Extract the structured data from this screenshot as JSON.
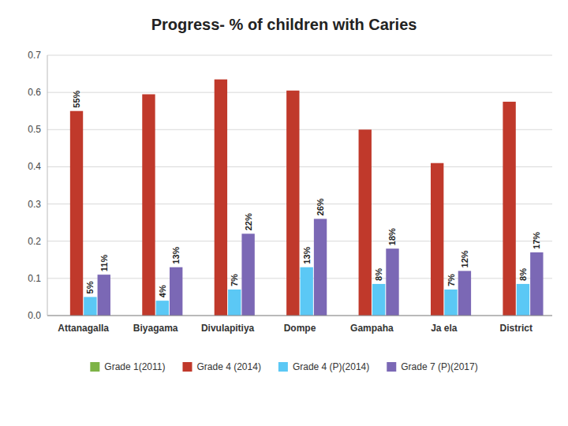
{
  "chart_data": {
    "type": "bar",
    "title": "Progress- % of children with Caries",
    "categories": [
      "Attanagalla",
      "Biyagama",
      "Divulapitiya",
      "Dompe",
      "Gampaha",
      "Ja ela",
      "District"
    ],
    "series": [
      {
        "name": "Grade 1(2011)",
        "color": "#7db346",
        "values": [
          0.0,
          0.0,
          0.0,
          0.0,
          0.0,
          0.0,
          0.0
        ]
      },
      {
        "name": "Grade 4 (2014)",
        "color": "#c0392b",
        "values": [
          0.55,
          0.595,
          0.635,
          0.605,
          0.5,
          0.41,
          0.575
        ],
        "value_labels": [
          "55%",
          null,
          null,
          null,
          null,
          null,
          null
        ]
      },
      {
        "name": "Grade 4 (P)(2014)",
        "color": "#5bc8f5",
        "values": [
          0.05,
          0.04,
          0.07,
          0.13,
          0.085,
          0.07,
          0.085
        ],
        "value_labels": [
          "5%",
          "4%",
          "7%",
          "13%",
          "8%",
          "7%",
          "8%"
        ]
      },
      {
        "name": "Grade 7 (P)(2017)",
        "color": "#7b68b5",
        "values": [
          0.11,
          0.13,
          0.22,
          0.26,
          0.18,
          0.12,
          0.17
        ],
        "value_labels": [
          "11%",
          "13%",
          "22%",
          "26%",
          "18%",
          "12%",
          "17%"
        ]
      }
    ],
    "ylim": [
      0,
      0.7
    ],
    "yticks": [
      {
        "value": 0,
        "label": "0.0"
      },
      0.1,
      0.2,
      0.3,
      0.4,
      0.5,
      0.6,
      0.7
    ],
    "grid": true,
    "data_labels": true,
    "legend": "bottom"
  }
}
